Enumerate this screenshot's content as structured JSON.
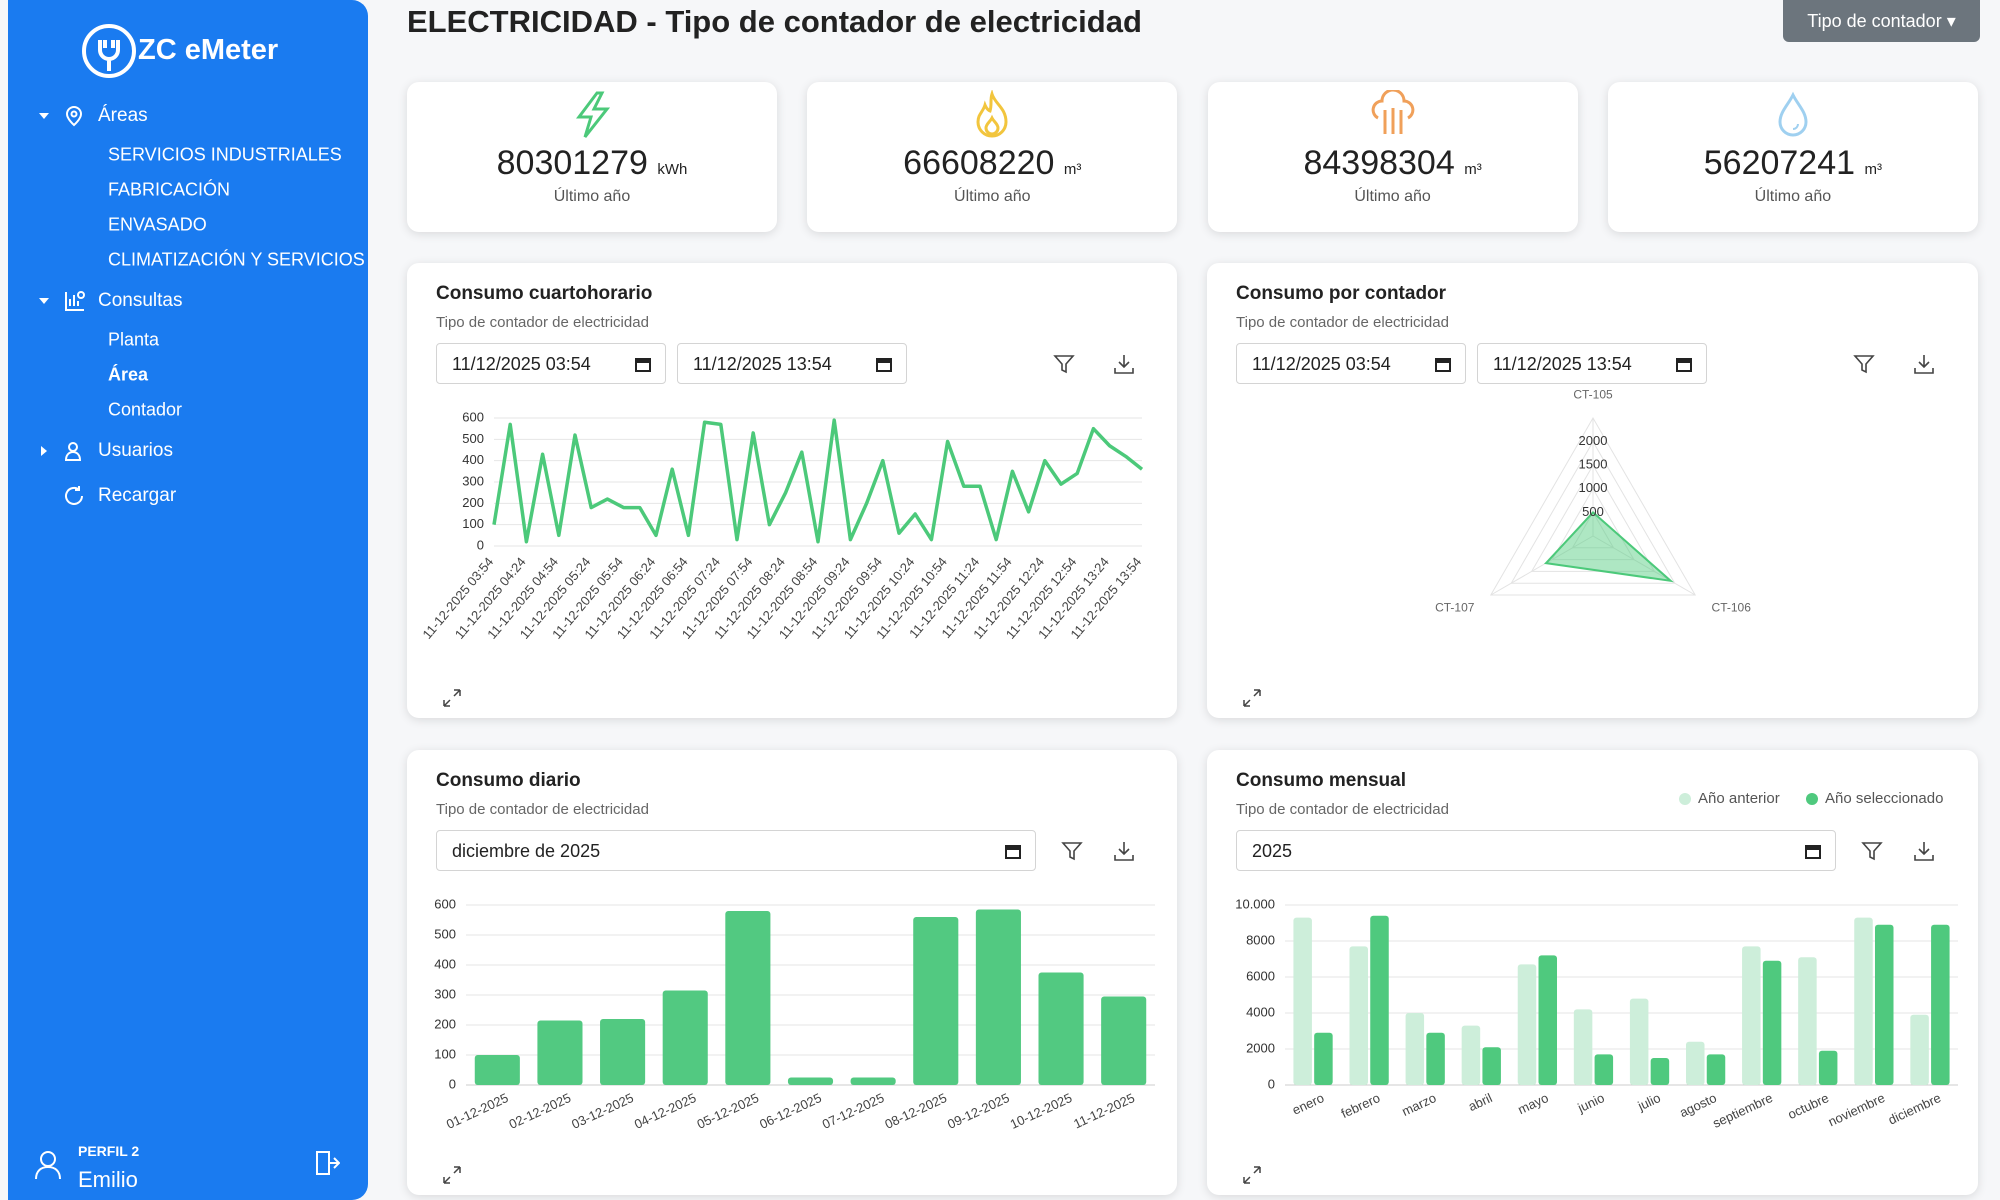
{
  "sidebar": {
    "brand": "ZC eMeter",
    "sections": [
      {
        "label": "Áreas",
        "items": [
          "SERVICIOS INDUSTRIALES",
          "FABRICACIÓN",
          "ENVASADO",
          "CLIMATIZACIÓN Y SERVICIOS"
        ]
      },
      {
        "label": "Consultas",
        "items": [
          "Planta",
          "Área",
          "Contador"
        ]
      },
      {
        "label": "Usuarios",
        "items": []
      }
    ],
    "reload": "Recargar",
    "profile": {
      "role": "PERFIL 2",
      "name": "Emilio"
    }
  },
  "header": {
    "title": "ELECTRICIDAD - Tipo de contador de electricidad",
    "button": "Tipo de contador"
  },
  "kpis": [
    {
      "value": 80301279,
      "unit": "kWh",
      "label": "Último año",
      "color": "#4cc97a"
    },
    {
      "value": 66608220,
      "unit": "m³",
      "label": "Último año",
      "color": "#f2c53d"
    },
    {
      "value": 84398304,
      "unit": "m³",
      "label": "Último año",
      "color": "#f0a05a"
    },
    {
      "value": 56207241,
      "unit": "m³",
      "label": "Último año",
      "color": "#9fd0f0"
    }
  ],
  "chart_data": [
    {
      "type": "line",
      "title": "Consumo cuartohorario",
      "subtitle": "Tipo de contador de electricidad",
      "inputs": [
        "11/12/2025 03:54",
        "11/12/2025 13:54"
      ],
      "color": "#4cc97a",
      "categories": [
        "11-12-2025 03:54",
        null,
        "11-12-2025 04:24",
        null,
        "11-12-2025 04:54",
        null,
        "11-12-2025 05:24",
        null,
        "11-12-2025 05:54",
        null,
        "11-12-2025 06:24",
        null,
        "11-12-2025 06:54",
        null,
        "11-12-2025 07:24",
        null,
        "11-12-2025 07:54",
        null,
        "11-12-2025 08:24",
        null,
        "11-12-2025 08:54",
        null,
        "11-12-2025 09:24",
        null,
        "11-12-2025 09:54",
        null,
        "11-12-2025 10:24",
        null,
        "11-12-2025 10:54",
        null,
        "11-12-2025 11:24",
        null,
        "11-12-2025 11:54",
        null,
        "11-12-2025 12:24",
        null,
        "11-12-2025 12:54",
        null,
        "11-12-2025 13:24",
        null,
        "11-12-2025 13:54"
      ],
      "values": [
        100,
        570,
        20,
        430,
        50,
        520,
        180,
        220,
        180,
        180,
        50,
        360,
        50,
        580,
        570,
        30,
        530,
        100,
        250,
        440,
        20,
        590,
        30,
        200,
        400,
        60,
        150,
        30,
        490,
        280,
        280,
        30,
        350,
        160,
        400,
        290,
        340,
        550,
        470,
        420,
        360
      ],
      "ylim": [
        0,
        600
      ],
      "yticks": [
        0,
        100,
        200,
        300,
        400,
        500,
        600
      ],
      "grid": true
    },
    {
      "type": "radar",
      "title": "Consumo por contador",
      "subtitle": "Tipo de contador de electricidad",
      "inputs": [
        "11/12/2025 03:54",
        "11/12/2025 13:54"
      ],
      "color": "#4cc97a",
      "categories": [
        "CT-105",
        "CT-106",
        "CT-107"
      ],
      "values": [
        500,
        1900,
        1150
      ],
      "rlim": [
        0,
        2500
      ],
      "rticks": [
        500,
        1000,
        1500,
        2000
      ]
    },
    {
      "type": "bar",
      "title": "Consumo diario",
      "subtitle": "Tipo de contador de electricidad",
      "inputs": [
        "diciembre de 2025"
      ],
      "color": "#52c981",
      "categories": [
        "01-12-2025",
        "02-12-2025",
        "03-12-2025",
        "04-12-2025",
        "05-12-2025",
        "06-12-2025",
        "07-12-2025",
        "08-12-2025",
        "09-12-2025",
        "10-12-2025",
        "11-12-2025"
      ],
      "values": [
        100,
        215,
        220,
        315,
        580,
        25,
        25,
        560,
        585,
        375,
        295
      ],
      "ylim": [
        0,
        600
      ],
      "yticks": [
        0,
        100,
        200,
        300,
        400,
        500,
        600
      ],
      "grid": true
    },
    {
      "type": "grouped_bar",
      "title": "Consumo mensual",
      "subtitle": "Tipo de contador de electricidad",
      "inputs": [
        "2025"
      ],
      "legend": "top-right",
      "categories": [
        "enero",
        "febrero",
        "marzo",
        "abril",
        "mayo",
        "junio",
        "julio",
        "agosto",
        "septiembre",
        "octubre",
        "noviembre",
        "diciembre"
      ],
      "series": [
        {
          "name": "Año anterior",
          "color": "#cdeeda",
          "values": [
            9300,
            7700,
            4000,
            3300,
            6700,
            4200,
            4800,
            2400,
            7700,
            7100,
            9300,
            3900
          ]
        },
        {
          "name": "Año seleccionado",
          "color": "#4fc97e",
          "values": [
            2900,
            9400,
            2900,
            2100,
            7200,
            1700,
            1500,
            1700,
            6900,
            1900,
            8900,
            8900
          ]
        }
      ],
      "ylim": [
        0,
        10000
      ],
      "yticks": [
        0,
        2000,
        4000,
        6000,
        8000,
        {
          "value": 10000,
          "label": "10.000"
        }
      ],
      "grid": true
    }
  ]
}
